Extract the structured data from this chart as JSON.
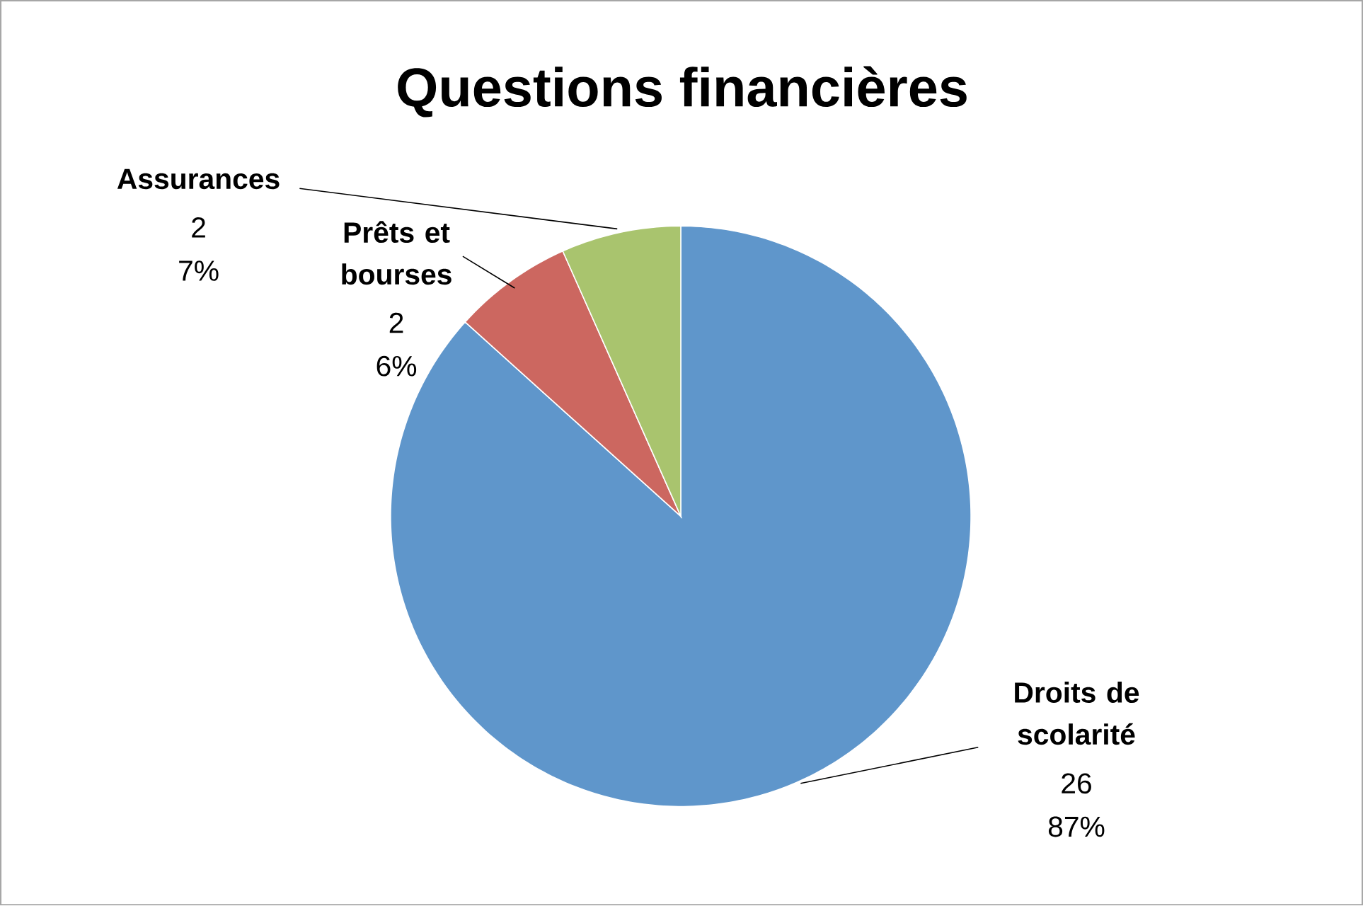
{
  "chart_data": {
    "type": "pie",
    "title": "Questions financières",
    "categories": [
      "Droits de scolarité",
      "Prêts et bourses",
      "Assurances"
    ],
    "values": [
      26,
      2,
      2
    ],
    "colors": [
      "#5f96cb",
      "#cc6760",
      "#a9c46e"
    ],
    "value_labels": [
      "26",
      "2",
      "2"
    ],
    "annotations": [
      {
        "text": "87%",
        "x": "Droits de scolarité"
      },
      {
        "text": "6%",
        "x": "Prêts et bourses"
      },
      {
        "text": "7%",
        "x": "Assurances"
      }
    ]
  }
}
